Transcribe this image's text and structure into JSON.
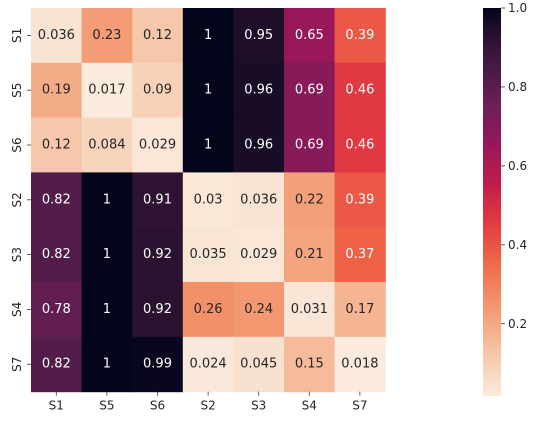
{
  "chart_data": {
    "type": "heatmap",
    "title": "",
    "xlabel": "",
    "ylabel": "",
    "x_labels": [
      "S1",
      "S5",
      "S6",
      "S2",
      "S3",
      "S4",
      "S7"
    ],
    "y_labels": [
      "S1",
      "S5",
      "S6",
      "S2",
      "S3",
      "S4",
      "S7"
    ],
    "values": [
      [
        0.036,
        0.23,
        0.12,
        1,
        0.95,
        0.65,
        0.39
      ],
      [
        0.19,
        0.017,
        0.09,
        1,
        0.96,
        0.69,
        0.46
      ],
      [
        0.12,
        0.084,
        0.029,
        1,
        0.96,
        0.69,
        0.46
      ],
      [
        0.82,
        1,
        0.91,
        0.03,
        0.036,
        0.22,
        0.39
      ],
      [
        0.82,
        1,
        0.92,
        0.035,
        0.029,
        0.21,
        0.37
      ],
      [
        0.78,
        1,
        0.92,
        0.26,
        0.24,
        0.031,
        0.17
      ],
      [
        0.82,
        1,
        0.99,
        0.024,
        0.045,
        0.15,
        0.018
      ]
    ],
    "value_labels": [
      [
        "0.036",
        "0.23",
        "0.12",
        "1",
        "0.95",
        "0.65",
        "0.39"
      ],
      [
        "0.19",
        "0.017",
        "0.09",
        "1",
        "0.96",
        "0.69",
        "0.46"
      ],
      [
        "0.12",
        "0.084",
        "0.029",
        "1",
        "0.96",
        "0.69",
        "0.46"
      ],
      [
        "0.82",
        "1",
        "0.91",
        "0.03",
        "0.036",
        "0.22",
        "0.39"
      ],
      [
        "0.82",
        "1",
        "0.92",
        "0.035",
        "0.029",
        "0.21",
        "0.37"
      ],
      [
        "0.78",
        "1",
        "0.92",
        "0.26",
        "0.24",
        "0.031",
        "0.17"
      ],
      [
        "0.82",
        "1",
        "0.99",
        "0.024",
        "0.045",
        "0.15",
        "0.018"
      ]
    ],
    "colorbar": {
      "min": 0.017,
      "max": 1.0,
      "ticks": [
        0.2,
        0.4,
        0.6,
        0.8,
        1.0
      ],
      "tick_labels": [
        "0.2",
        "0.4",
        "0.6",
        "0.8",
        "1.0"
      ]
    },
    "colormap": "rocket_r",
    "grid": false,
    "legend": "colorbar-right"
  }
}
